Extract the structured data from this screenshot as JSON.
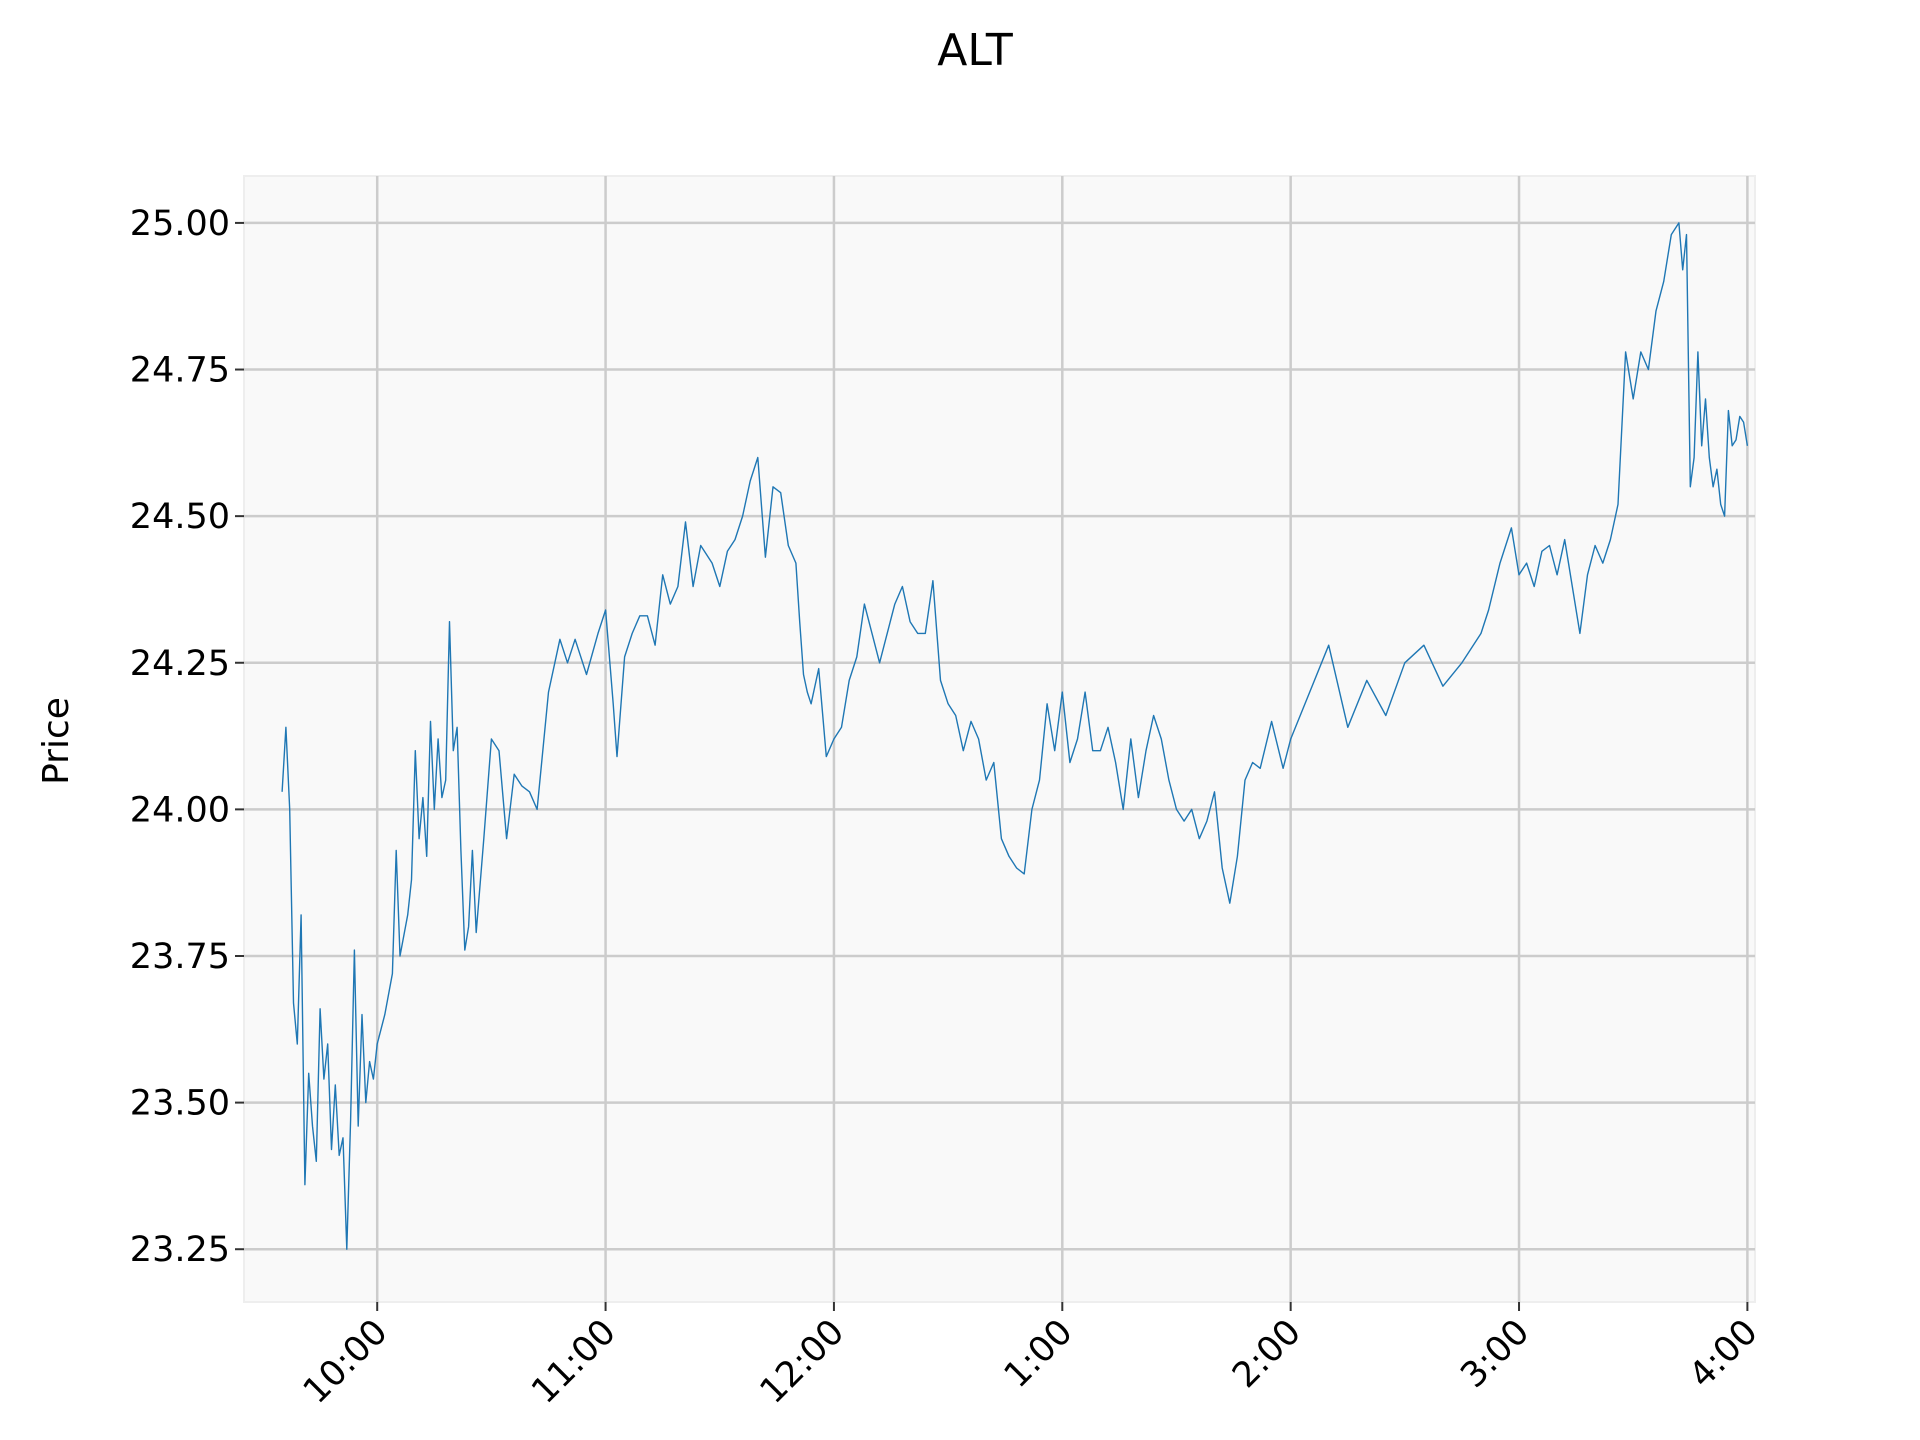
{
  "chart_data": {
    "type": "line",
    "title": "ALT",
    "xlabel": "",
    "ylabel": "Price",
    "x_tick_labels": [
      {
        "hour": 10,
        "label": "10:00"
      },
      {
        "hour": 11,
        "label": "11:00"
      },
      {
        "hour": 12,
        "label": "12:00"
      },
      {
        "hour": 13,
        "label": "1:00"
      },
      {
        "hour": 14,
        "label": "2:00"
      },
      {
        "hour": 15,
        "label": "3:00"
      },
      {
        "hour": 16,
        "label": "4:00"
      }
    ],
    "y_ticks": [
      23.25,
      23.5,
      23.75,
      24.0,
      24.25,
      24.5,
      24.75,
      25.0
    ],
    "xlim": [
      "9:25",
      "16:02"
    ],
    "ylim": [
      23.16,
      25.08
    ],
    "grid": true,
    "line_color": "#1f77b4",
    "series": [
      {
        "x": [
          "9:35",
          "9:36",
          "9:37",
          "9:38",
          "9:39",
          "9:40",
          "9:41",
          "9:42",
          "9:43",
          "9:44",
          "9:45",
          "9:46",
          "9:47",
          "9:48",
          "9:49",
          "9:50",
          "9:51",
          "9:52",
          "9:53",
          "9:54",
          "9:55",
          "9:56",
          "9:57",
          "9:58",
          "9:59",
          "10:00",
          "10:02",
          "10:04",
          "10:05",
          "10:06",
          "10:08",
          "10:09",
          "10:10",
          "10:11",
          "10:12",
          "10:13",
          "10:14",
          "10:15",
          "10:16",
          "10:17",
          "10:18",
          "10:19",
          "10:20",
          "10:21",
          "10:22",
          "10:23",
          "10:24",
          "10:25",
          "10:26",
          "10:28",
          "10:30",
          "10:32",
          "10:34",
          "10:36",
          "10:38",
          "10:40",
          "10:42",
          "10:45",
          "10:48",
          "10:50",
          "10:52",
          "10:55",
          "10:58",
          "11:00",
          "11:02",
          "11:03",
          "11:05",
          "11:07",
          "11:09",
          "11:11",
          "11:13",
          "11:15",
          "11:17",
          "11:19",
          "11:21",
          "11:23",
          "11:25",
          "11:28",
          "11:30",
          "11:32",
          "11:34",
          "11:36",
          "11:38",
          "11:40",
          "11:42",
          "11:44",
          "11:46",
          "11:48",
          "11:50",
          "11:51",
          "11:52",
          "11:53",
          "11:54",
          "11:56",
          "11:58",
          "12:00",
          "12:02",
          "12:04",
          "12:06",
          "12:08",
          "12:10",
          "12:12",
          "12:14",
          "12:16",
          "12:18",
          "12:20",
          "12:22",
          "12:24",
          "12:26",
          "12:28",
          "12:30",
          "12:32",
          "12:34",
          "12:36",
          "12:38",
          "12:40",
          "12:42",
          "12:44",
          "12:46",
          "12:48",
          "12:50",
          "12:52",
          "12:54",
          "12:56",
          "12:58",
          "13:00",
          "13:02",
          "13:04",
          "13:06",
          "13:08",
          "13:10",
          "13:12",
          "13:14",
          "13:16",
          "13:18",
          "13:20",
          "13:22",
          "13:24",
          "13:26",
          "13:28",
          "13:30",
          "13:32",
          "13:34",
          "13:36",
          "13:38",
          "13:40",
          "13:42",
          "13:44",
          "13:46",
          "13:48",
          "13:50",
          "13:52",
          "13:55",
          "13:58",
          "14:00",
          "14:05",
          "14:10",
          "14:15",
          "14:20",
          "14:25",
          "14:30",
          "14:35",
          "14:40",
          "14:45",
          "14:50",
          "14:52",
          "14:55",
          "14:58",
          "15:00",
          "15:02",
          "15:04",
          "15:06",
          "15:08",
          "15:10",
          "15:12",
          "15:14",
          "15:16",
          "15:18",
          "15:20",
          "15:22",
          "15:24",
          "15:26",
          "15:28",
          "15:30",
          "15:32",
          "15:34",
          "15:36",
          "15:38",
          "15:40",
          "15:42",
          "15:43",
          "15:44",
          "15:45",
          "15:46",
          "15:47",
          "15:48",
          "15:49",
          "15:50",
          "15:51",
          "15:52",
          "15:53",
          "15:54",
          "15:55",
          "15:56",
          "15:57",
          "15:58",
          "15:59",
          "16:00"
        ],
        "y": [
          24.03,
          24.14,
          24.0,
          23.67,
          23.6,
          23.82,
          23.36,
          23.55,
          23.46,
          23.4,
          23.66,
          23.54,
          23.6,
          23.42,
          23.53,
          23.41,
          23.44,
          23.25,
          23.47,
          23.76,
          23.46,
          23.65,
          23.5,
          23.57,
          23.54,
          23.6,
          23.65,
          23.72,
          23.93,
          23.75,
          23.82,
          23.88,
          24.1,
          23.95,
          24.02,
          23.92,
          24.15,
          24.0,
          24.12,
          24.02,
          24.05,
          24.32,
          24.1,
          24.14,
          23.93,
          23.76,
          23.8,
          23.93,
          23.79,
          23.95,
          24.12,
          24.1,
          23.95,
          24.06,
          24.04,
          24.03,
          24.0,
          24.2,
          24.29,
          24.25,
          24.29,
          24.23,
          24.3,
          24.34,
          24.18,
          24.09,
          24.26,
          24.3,
          24.33,
          24.33,
          24.28,
          24.4,
          24.35,
          24.38,
          24.49,
          24.38,
          24.45,
          24.42,
          24.38,
          24.44,
          24.46,
          24.5,
          24.56,
          24.6,
          24.43,
          24.55,
          24.54,
          24.45,
          24.42,
          24.32,
          24.23,
          24.2,
          24.18,
          24.24,
          24.09,
          24.12,
          24.14,
          24.22,
          24.26,
          24.35,
          24.3,
          24.25,
          24.3,
          24.35,
          24.38,
          24.32,
          24.3,
          24.3,
          24.39,
          24.22,
          24.18,
          24.16,
          24.1,
          24.15,
          24.12,
          24.05,
          24.08,
          23.95,
          23.92,
          23.9,
          23.89,
          24.0,
          24.05,
          24.18,
          24.1,
          24.2,
          24.08,
          24.12,
          24.2,
          24.1,
          24.1,
          24.14,
          24.08,
          24.0,
          24.12,
          24.02,
          24.1,
          24.16,
          24.12,
          24.05,
          24.0,
          23.98,
          24.0,
          23.95,
          23.98,
          24.03,
          23.9,
          23.84,
          23.92,
          24.05,
          24.08,
          24.07,
          24.15,
          24.07,
          24.12,
          24.2,
          24.28,
          24.14,
          24.22,
          24.16,
          24.25,
          24.28,
          24.21,
          24.25,
          24.3,
          24.34,
          24.42,
          24.48,
          24.4,
          24.42,
          24.38,
          24.44,
          24.45,
          24.4,
          24.46,
          24.38,
          24.3,
          24.4,
          24.45,
          24.42,
          24.46,
          24.52,
          24.78,
          24.7,
          24.78,
          24.75,
          24.85,
          24.9,
          24.98,
          25.0,
          24.92,
          24.98,
          24.55,
          24.6,
          24.78,
          24.62,
          24.7,
          24.6,
          24.55,
          24.58,
          24.52,
          24.5,
          24.68,
          24.62,
          24.63,
          24.67,
          24.66,
          24.62
        ]
      }
    ]
  }
}
